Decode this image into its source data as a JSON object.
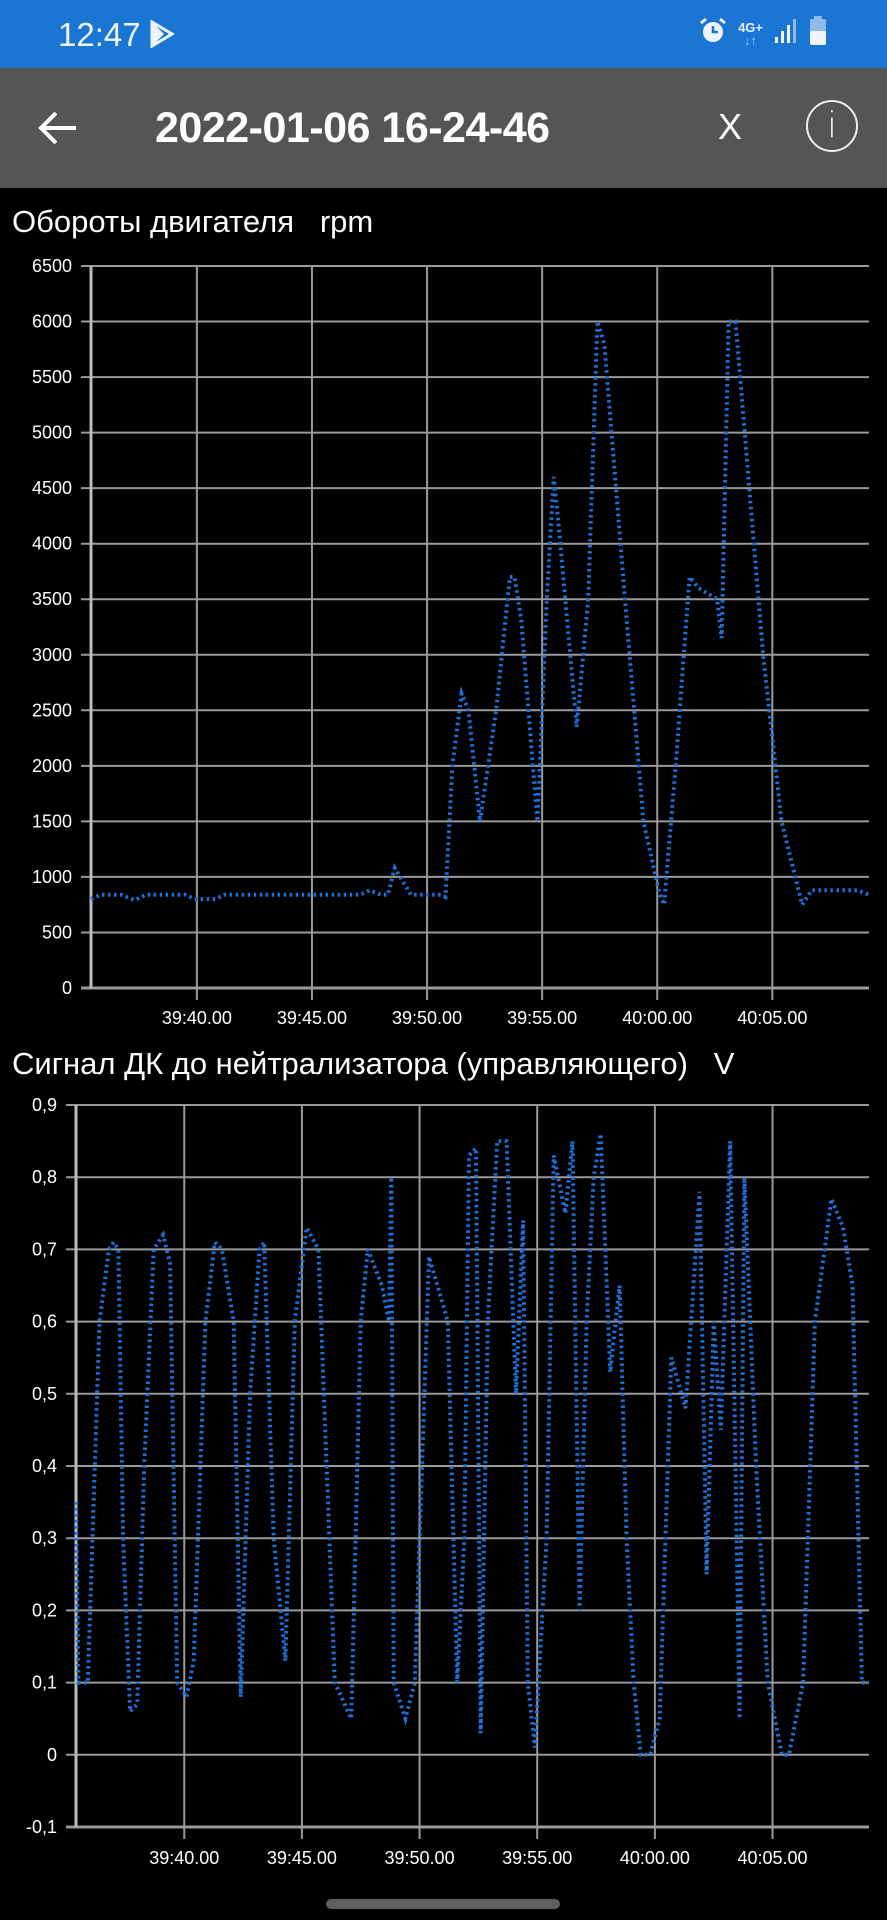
{
  "status_bar": {
    "time": "12:47",
    "icons": [
      "play-store-icon",
      "alarm-icon",
      "network-4g-plus-icon",
      "signal-icon",
      "battery-icon"
    ],
    "network_label": "4G+",
    "color": "#1b76d3"
  },
  "app_bar": {
    "back_icon": "arrow-left-icon",
    "title": "2022-01-06 16-24-46",
    "close_label": "X",
    "info_label": "i",
    "color": "#555555"
  },
  "line_color": "#1e6fd6",
  "chart_data": [
    {
      "type": "line",
      "title": "Обороты двигателя",
      "unit": "rpm",
      "title_full": "Обороты двигателя   rpm",
      "xlabel": "",
      "ylabel": "rpm",
      "ylim": [
        0,
        6500
      ],
      "yticks": [
        0,
        500,
        1000,
        1500,
        2000,
        2500,
        3000,
        3500,
        4000,
        4500,
        5000,
        5500,
        6000,
        6500
      ],
      "ytick_labels": [
        "0",
        "500",
        "1000",
        "1500",
        "2000",
        "2500",
        "3000",
        "3500",
        "4000",
        "4500",
        "5000",
        "5500",
        "6000",
        "6500"
      ],
      "xlim_seconds": [
        -4.6,
        29.2
      ],
      "xticks_seconds": [
        0,
        5,
        10,
        15,
        20,
        25
      ],
      "xtick_labels": [
        "39:40.00",
        "39:45.00",
        "39:50.00",
        "39:55.00",
        "40:00.00",
        "40:05.00"
      ],
      "grid": true,
      "line_style": "dotted",
      "series": [
        {
          "name": "Обороты двигателя",
          "t": [
            -4.6,
            -4.2,
            -3.3,
            -2.7,
            -2.2,
            -0.5,
            -0.1,
            0.8,
            1.2,
            7.1,
            7.5,
            8.0,
            8.3,
            8.6,
            9.3,
            10.6,
            10.8,
            11.1,
            11.5,
            11.8,
            12.3,
            13.0,
            13.6,
            13.8,
            14.1,
            14.6,
            14.8,
            15.2,
            15.5,
            15.7,
            16.5,
            17.0,
            17.4,
            17.7,
            18.6,
            19.4,
            20.1,
            20.3,
            20.8,
            21.4,
            21.8,
            22.6,
            22.8,
            23.1,
            23.4,
            23.8,
            24.6,
            25.4,
            26.3,
            26.7,
            28.7,
            29.2
          ],
          "values": [
            800,
            840,
            840,
            790,
            840,
            840,
            800,
            800,
            840,
            840,
            880,
            840,
            840,
            1080,
            840,
            840,
            820,
            2000,
            2650,
            2500,
            1500,
            2500,
            3700,
            3700,
            3300,
            2000,
            1500,
            3500,
            4600,
            4200,
            2350,
            3500,
            6000,
            5800,
            3500,
            1500,
            850,
            750,
            2000,
            3700,
            3600,
            3500,
            3150,
            6000,
            6000,
            5000,
            3000,
            1500,
            750,
            880,
            880,
            840
          ]
        }
      ]
    },
    {
      "type": "line",
      "title": "Сигнал ДК до нейтрализатора (управляющего)",
      "unit": "V",
      "title_full": "Сигнал ДК до нейтрализатора (управляющего)   V",
      "xlabel": "",
      "ylabel": "V",
      "ylim": [
        -0.1,
        0.9
      ],
      "yticks": [
        -0.1,
        0,
        0.1,
        0.2,
        0.3,
        0.4,
        0.5,
        0.6,
        0.7,
        0.8,
        0.9
      ],
      "ytick_labels": [
        "-0,1",
        "0",
        "0,1",
        "0,2",
        "0,3",
        "0,4",
        "0,5",
        "0,6",
        "0,7",
        "0,8",
        "0,9"
      ],
      "xlim_seconds": [
        -4.6,
        29.1
      ],
      "xticks_seconds": [
        0,
        5,
        10,
        15,
        20,
        25
      ],
      "xtick_labels": [
        "39:40.00",
        "39:45.00",
        "39:50.00",
        "39:55.00",
        "40:00.00",
        "40:05.00"
      ],
      "grid": true,
      "line_style": "dotted",
      "series": [
        {
          "name": "Сигнал ДК",
          "t": [
            -4.6,
            -4.5,
            -4.1,
            -3.6,
            -3.2,
            -3.0,
            -2.8,
            -2.6,
            -2.3,
            -2.0,
            -1.7,
            -1.3,
            -0.9,
            -0.6,
            -0.3,
            0.1,
            0.4,
            0.9,
            1.3,
            1.6,
            2.1,
            2.4,
            2.8,
            3.2,
            3.4,
            3.8,
            4.3,
            4.7,
            5.2,
            5.7,
            6.4,
            7.1,
            7.5,
            7.8,
            8.4,
            8.7,
            8.8,
            8.9,
            9.4,
            9.8,
            10.4,
            11.2,
            11.6,
            11.9,
            12.1,
            12.4,
            12.6,
            12.9,
            13.3,
            13.7,
            14.1,
            14.4,
            14.6,
            14.9,
            15.4,
            15.7,
            16.2,
            16.5,
            16.8,
            17.1,
            17.4,
            17.7,
            18.1,
            18.5,
            18.8,
            19.1,
            19.4,
            19.8,
            20.2,
            20.7,
            21.3,
            21.9,
            22.2,
            22.5,
            22.8,
            23.2,
            23.6,
            23.8,
            24.3,
            24.8,
            25.4,
            25.7,
            26.3,
            26.8,
            27.5,
            28.0,
            28.4,
            28.8,
            29.1
          ],
          "values": [
            0.35,
            0.1,
            0.1,
            0.6,
            0.7,
            0.71,
            0.7,
            0.3,
            0.06,
            0.07,
            0.4,
            0.7,
            0.72,
            0.68,
            0.1,
            0.08,
            0.13,
            0.6,
            0.71,
            0.7,
            0.6,
            0.08,
            0.5,
            0.7,
            0.71,
            0.3,
            0.13,
            0.6,
            0.73,
            0.7,
            0.1,
            0.05,
            0.6,
            0.7,
            0.65,
            0.6,
            0.8,
            0.1,
            0.05,
            0.1,
            0.69,
            0.6,
            0.1,
            0.3,
            0.83,
            0.84,
            0.03,
            0.6,
            0.85,
            0.85,
            0.5,
            0.74,
            0.1,
            0.01,
            0.3,
            0.83,
            0.75,
            0.85,
            0.2,
            0.6,
            0.8,
            0.86,
            0.53,
            0.65,
            0.3,
            0.1,
            0.0,
            0.0,
            0.05,
            0.55,
            0.48,
            0.78,
            0.25,
            0.6,
            0.45,
            0.85,
            0.05,
            0.8,
            0.4,
            0.1,
            0.0,
            0.0,
            0.1,
            0.6,
            0.77,
            0.73,
            0.65,
            0.1,
            0.1
          ]
        }
      ]
    }
  ]
}
